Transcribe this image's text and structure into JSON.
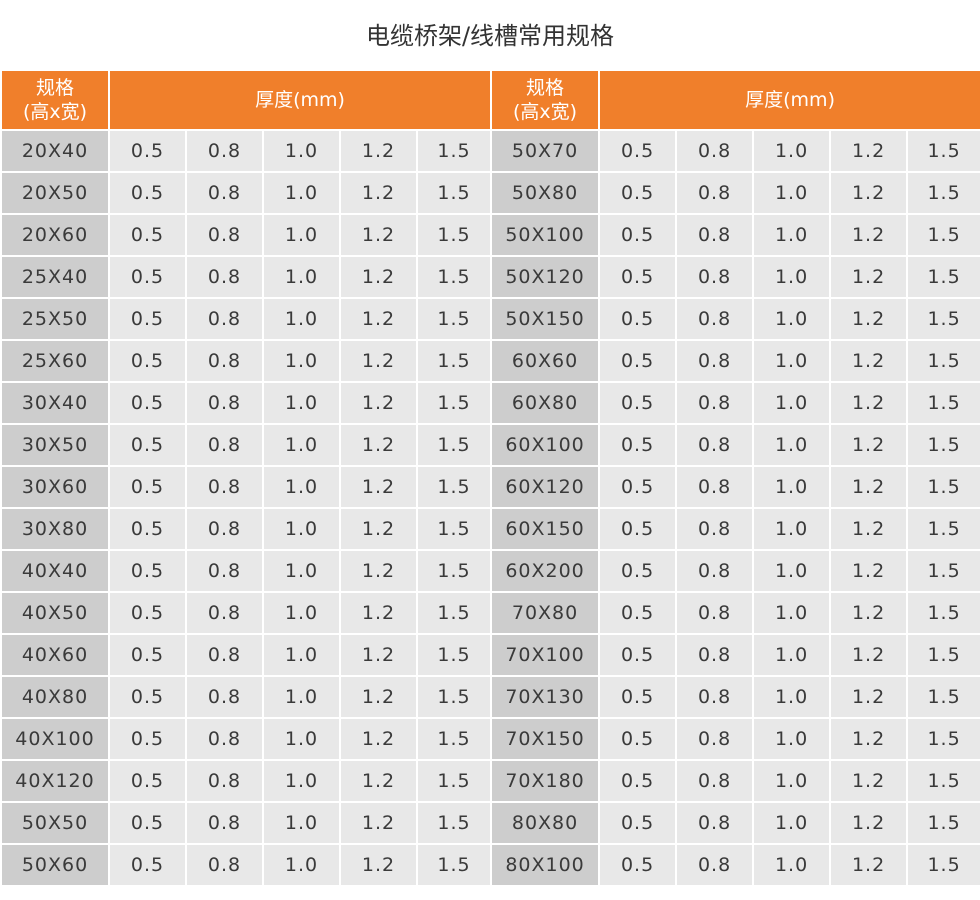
{
  "title": "电缆桥架/线槽常用规格",
  "header": {
    "spec_label_line1": "规格",
    "spec_label_line2": "(高x宽)",
    "thickness_label": "厚度(mm)"
  },
  "thickness_values": [
    "0.5",
    "0.8",
    "1.0",
    "1.2",
    "1.5"
  ],
  "left_specs": [
    "20X40",
    "20X50",
    "20X60",
    "25X40",
    "25X50",
    "25X60",
    "30X40",
    "30X50",
    "30X60",
    "30X80",
    "40X40",
    "40X50",
    "40X60",
    "40X80",
    "40X100",
    "40X120",
    "50X50",
    "50X60"
  ],
  "right_specs": [
    "50X70",
    "50X80",
    "50X100",
    "50X120",
    "50X150",
    "60X60",
    "60X80",
    "60X100",
    "60X120",
    "60X150",
    "60X200",
    "70X80",
    "70X100",
    "70X130",
    "70X150",
    "70X180",
    "80X80",
    "80X100"
  ]
}
